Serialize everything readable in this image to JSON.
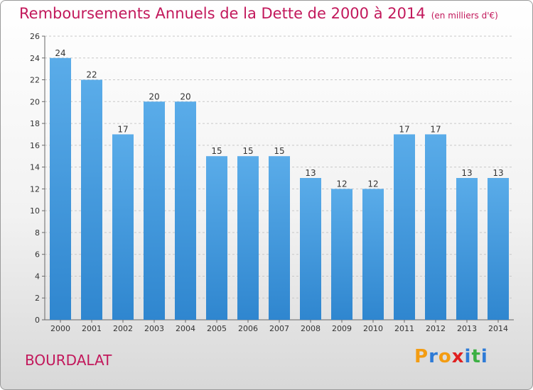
{
  "title": "Remboursements Annuels de la Dette de 2000 à 2014",
  "subtitle": "(en milliers d'€)",
  "place": "BOURDALAT",
  "logo": {
    "letters": [
      "P",
      "r",
      "o",
      "x",
      "i",
      "t",
      "i"
    ],
    "colors": [
      "#f39c12",
      "#2e7bd6",
      "#f39c12",
      "#e02020",
      "#2e7bd6",
      "#3cb043",
      "#2e7bd6"
    ]
  },
  "colors": {
    "bar_light": "#5aace9",
    "bar_dark": "#2f86cf",
    "title": "#c2185b"
  },
  "chart_data": {
    "type": "bar",
    "title": "Remboursements Annuels de la Dette de 2000 à 2014",
    "subtitle": "(en milliers d'€)",
    "xlabel": "",
    "ylabel": "",
    "categories": [
      "2000",
      "2001",
      "2002",
      "2003",
      "2004",
      "2005",
      "2006",
      "2007",
      "2008",
      "2009",
      "2010",
      "2011",
      "2012",
      "2013",
      "2014"
    ],
    "values": [
      24,
      22,
      17,
      20,
      20,
      15,
      15,
      15,
      13,
      12,
      12,
      17,
      17,
      13,
      13
    ],
    "ylim": [
      0,
      26
    ],
    "yticks": [
      0,
      2,
      4,
      6,
      8,
      10,
      12,
      14,
      16,
      18,
      20,
      22,
      24,
      26
    ],
    "grid": true
  }
}
